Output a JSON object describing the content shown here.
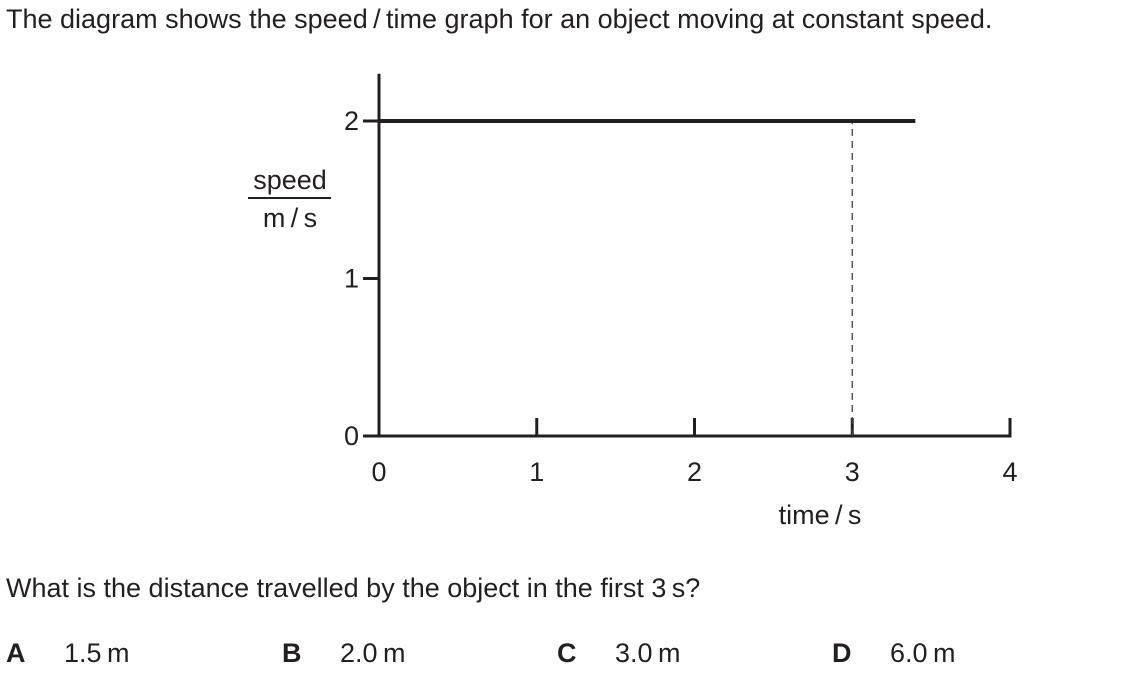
{
  "intro_text": "The diagram shows the speed / time graph for an object moving at constant speed.",
  "question_text": "What is the distance travelled by the object in the first 3 s?",
  "options": [
    {
      "letter": "A",
      "value": "1.5 m"
    },
    {
      "letter": "B",
      "value": "2.0 m"
    },
    {
      "letter": "C",
      "value": "3.0 m"
    },
    {
      "letter": "D",
      "value": "6.0 m"
    }
  ],
  "chart_data": {
    "type": "line",
    "title": "",
    "xlabel": "time / s",
    "ylabel_numerator": "speed",
    "ylabel_denominator": "m / s",
    "xlim": [
      0,
      4
    ],
    "ylim": [
      0,
      2.3
    ],
    "x_ticks": [
      0,
      1,
      2,
      3,
      4
    ],
    "x_tick_labels": [
      "0",
      "1",
      "2",
      "3",
      "4"
    ],
    "y_ticks": [
      0,
      1,
      2
    ],
    "y_tick_labels": [
      "0",
      "1",
      "2"
    ],
    "grid": false,
    "series": [
      {
        "x": [
          0,
          3.4
        ],
        "y": [
          2,
          2
        ]
      }
    ],
    "reference_lines": [
      {
        "x": [
          3,
          3
        ],
        "y": [
          0,
          2
        ],
        "style": "dashed"
      }
    ],
    "colors": {
      "line": "#231f20",
      "axis": "#231f20",
      "dashed": "#444444"
    }
  }
}
